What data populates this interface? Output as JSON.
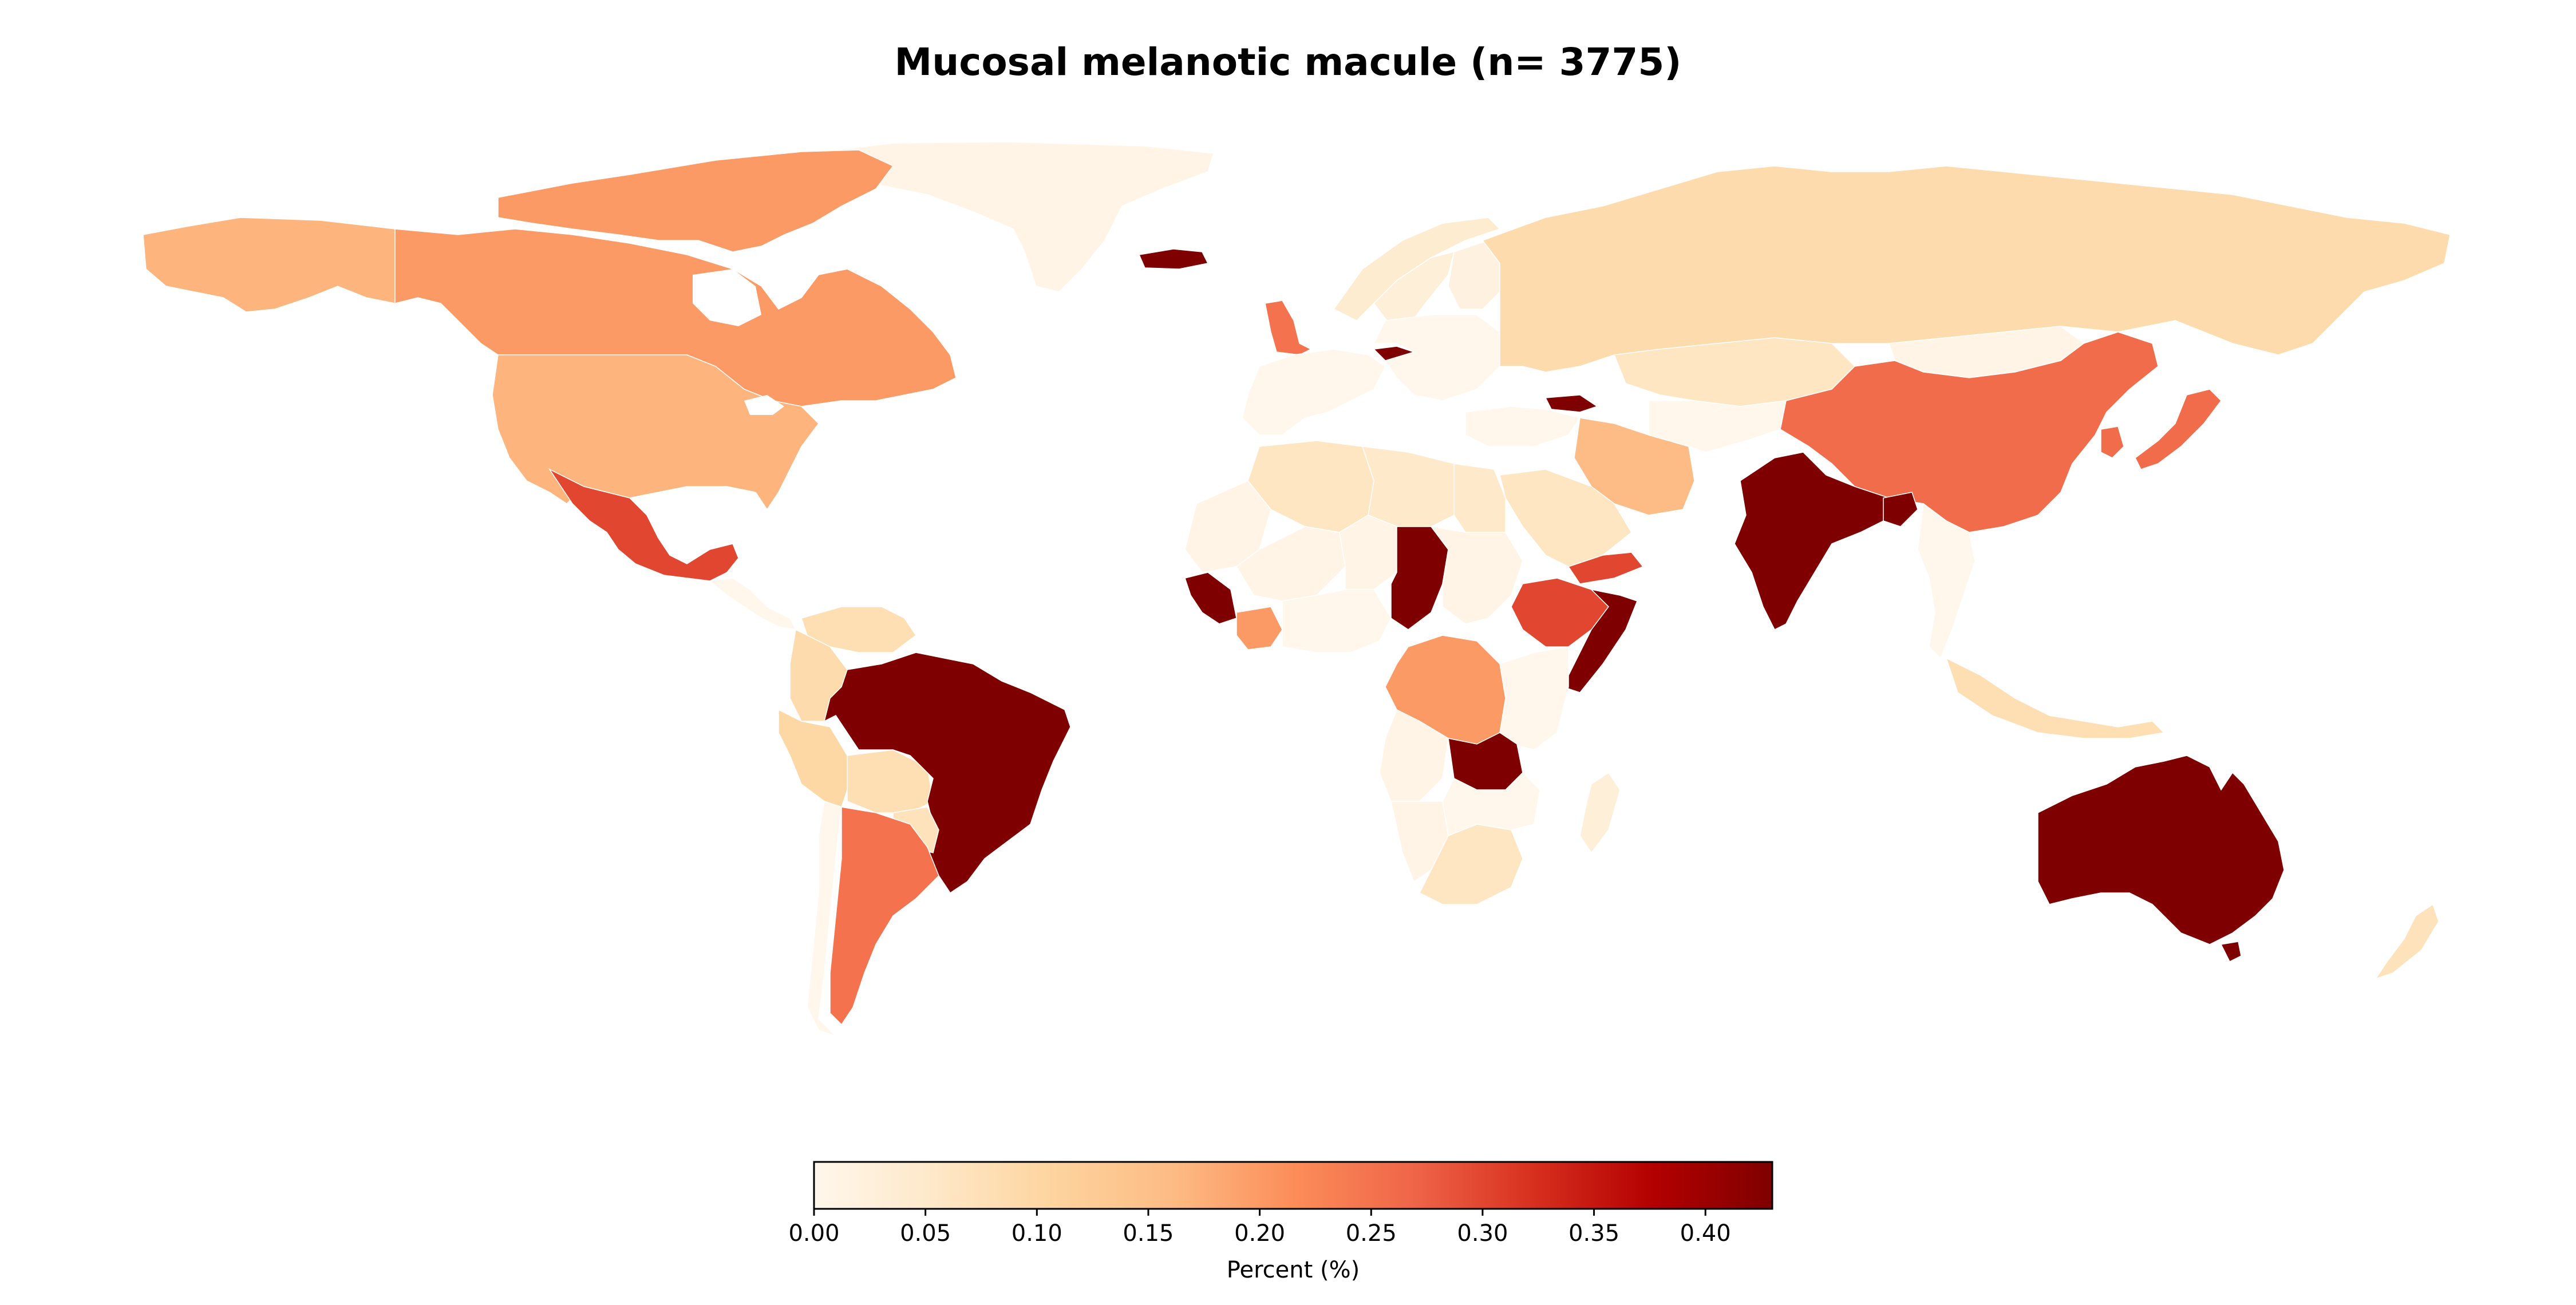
{
  "title": "Mucosal melanotic macule (n= 3775)",
  "colorbar": {
    "label": "Percent (%)",
    "min": 0.0,
    "max": 0.43,
    "ticks": [
      "0.00",
      "0.05",
      "0.10",
      "0.15",
      "0.20",
      "0.25",
      "0.30",
      "0.35",
      "0.40"
    ],
    "colormap": "OrRd",
    "stops": [
      "#fff7ec",
      "#fee8c8",
      "#fdd49e",
      "#fdbb84",
      "#fc8d59",
      "#ef6548",
      "#d7301f",
      "#b30000",
      "#7f0000"
    ]
  },
  "map_data": {
    "type": "choropleth",
    "metric": "Percent (%)",
    "countries": [
      {
        "name": "Brazil",
        "value": 0.43
      },
      {
        "name": "Australia",
        "value": 0.43
      },
      {
        "name": "India",
        "value": 0.43
      },
      {
        "name": "Chad",
        "value": 0.43
      },
      {
        "name": "Zambia",
        "value": 0.43
      },
      {
        "name": "Somalia",
        "value": 0.43
      },
      {
        "name": "Iceland",
        "value": 0.43
      },
      {
        "name": "Czechia",
        "value": 0.43
      },
      {
        "name": "Georgia",
        "value": 0.43
      },
      {
        "name": "Guinea",
        "value": 0.43
      },
      {
        "name": "Bangladesh",
        "value": 0.43
      },
      {
        "name": "Mexico",
        "value": 0.3
      },
      {
        "name": "Ethiopia",
        "value": 0.3
      },
      {
        "name": "Yemen",
        "value": 0.3
      },
      {
        "name": "China",
        "value": 0.26
      },
      {
        "name": "Japan",
        "value": 0.26
      },
      {
        "name": "South Korea",
        "value": 0.26
      },
      {
        "name": "Argentina",
        "value": 0.25
      },
      {
        "name": "United Kingdom",
        "value": 0.25
      },
      {
        "name": "Canada",
        "value": 0.2
      },
      {
        "name": "DR Congo",
        "value": 0.2
      },
      {
        "name": "Ivory Coast",
        "value": 0.2
      },
      {
        "name": "United States",
        "value": 0.17
      },
      {
        "name": "Iran",
        "value": 0.16
      },
      {
        "name": "Russia",
        "value": 0.09
      },
      {
        "name": "Peru",
        "value": 0.1
      },
      {
        "name": "Colombia",
        "value": 0.09
      },
      {
        "name": "Bolivia",
        "value": 0.08
      },
      {
        "name": "Paraguay",
        "value": 0.07
      },
      {
        "name": "Indonesia",
        "value": 0.08
      },
      {
        "name": "New Zealand",
        "value": 0.07
      },
      {
        "name": "Algeria",
        "value": 0.06
      },
      {
        "name": "Libya",
        "value": 0.05
      },
      {
        "name": "Egypt",
        "value": 0.05
      },
      {
        "name": "Saudi Arabia",
        "value": 0.06
      },
      {
        "name": "Kazakhstan",
        "value": 0.06
      },
      {
        "name": "South Africa",
        "value": 0.06
      },
      {
        "name": "Greenland",
        "value": 0.01
      },
      {
        "name": "Mongolia",
        "value": 0.01
      },
      {
        "name": "Sudan",
        "value": 0.01
      },
      {
        "name": "Mauritania",
        "value": 0.01
      },
      {
        "name": "Mali",
        "value": 0.01
      },
      {
        "name": "Niger",
        "value": 0.01
      },
      {
        "name": "Angola",
        "value": 0.01
      },
      {
        "name": "Namibia",
        "value": 0.01
      },
      {
        "name": "Madagascar",
        "value": 0.03
      },
      {
        "name": "Venezuela",
        "value": 0.08
      },
      {
        "name": "Norway",
        "value": 0.04
      },
      {
        "name": "Sweden",
        "value": 0.03
      },
      {
        "name": "Finland",
        "value": 0.02
      }
    ]
  }
}
